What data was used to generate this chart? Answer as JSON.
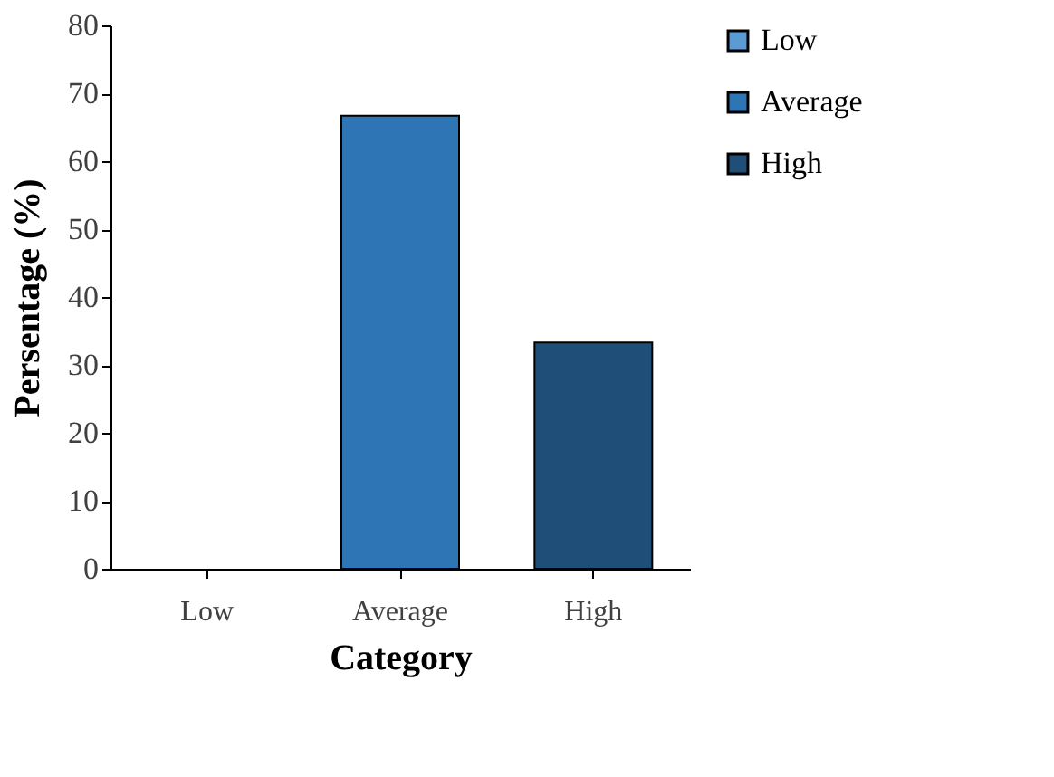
{
  "chart_data": {
    "type": "bar",
    "xlabel": "Category",
    "ylabel": "Persentage (%)",
    "categories": [
      "Low",
      "Average",
      "High"
    ],
    "series": [
      {
        "name": "Low",
        "color": "#5b9bd5",
        "values": [
          0,
          null,
          null
        ]
      },
      {
        "name": "Average",
        "color": "#2e75b6",
        "values": [
          null,
          66.7,
          null
        ]
      },
      {
        "name": "High",
        "color": "#1f4e79",
        "values": [
          null,
          null,
          33.3
        ]
      }
    ],
    "ylim": [
      0,
      80
    ],
    "yticks": [
      0,
      10,
      20,
      30,
      40,
      50,
      60,
      70,
      80
    ],
    "grid": false,
    "legend": "right"
  }
}
